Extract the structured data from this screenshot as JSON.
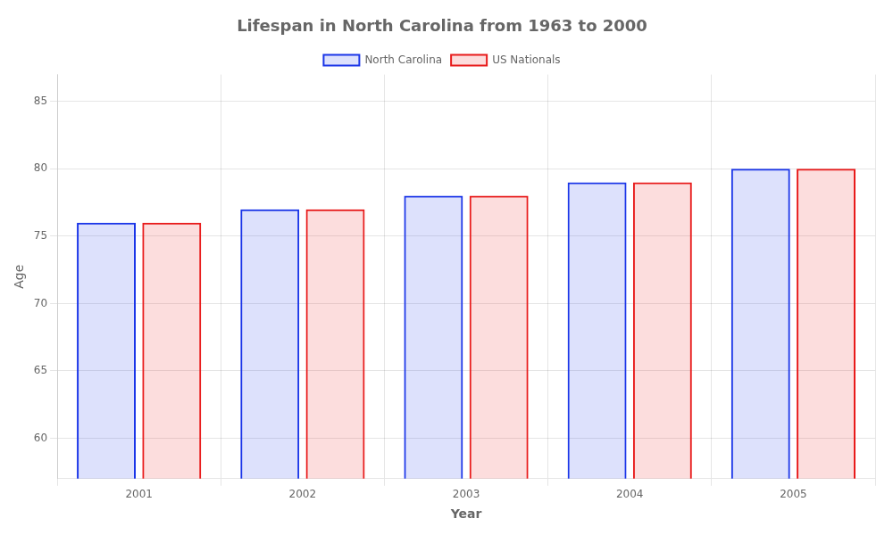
{
  "chart_data": {
    "type": "bar",
    "title": "Lifespan in North Carolina from 1963 to 2000",
    "x_label": "Year",
    "y_label": "Age",
    "categories": [
      "2001",
      "2002",
      "2003",
      "2004",
      "2005"
    ],
    "series": [
      {
        "name": "North Carolina",
        "color": "#1a35e8",
        "values": [
          76,
          77,
          78,
          79,
          80
        ]
      },
      {
        "name": "US Nationals",
        "color": "#e81a1a",
        "values": [
          76,
          77,
          78,
          79,
          80
        ]
      }
    ],
    "ylim": [
      57,
      87
    ],
    "yticks": [
      60,
      65,
      70,
      75,
      80,
      85
    ],
    "grid": true,
    "legend": "top"
  }
}
